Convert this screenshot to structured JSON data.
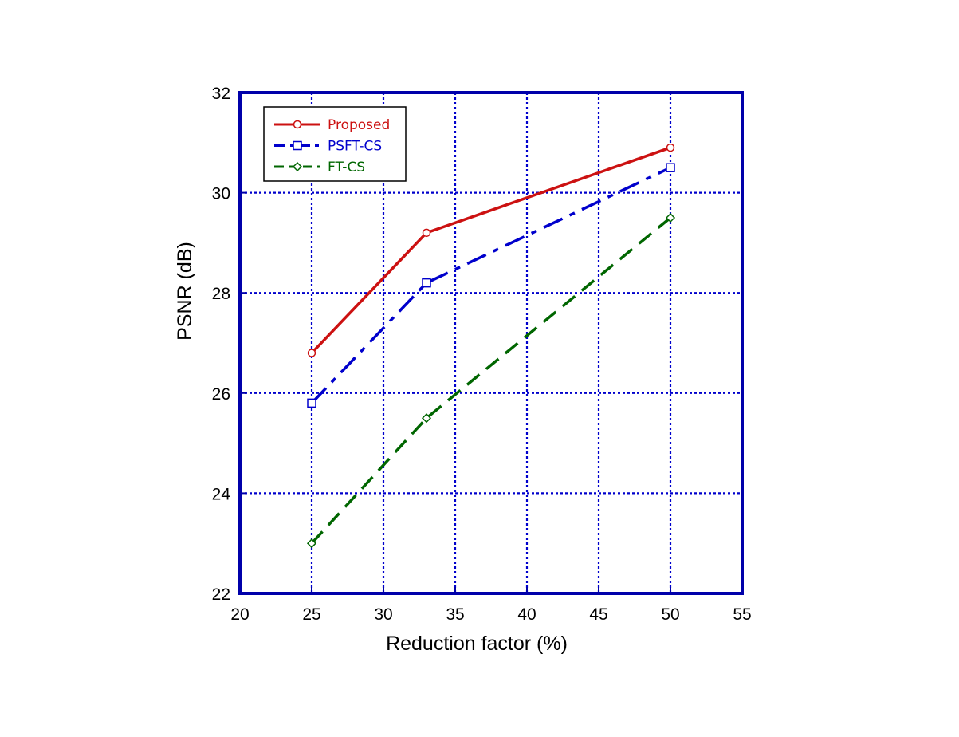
{
  "chart_data": {
    "type": "line",
    "xlabel": "Reduction factor (%)",
    "ylabel": "PSNR (dB)",
    "xlim": [
      20,
      55
    ],
    "ylim": [
      22,
      32
    ],
    "xticks": [
      20,
      25,
      30,
      35,
      40,
      45,
      50,
      55
    ],
    "yticks": [
      22,
      24,
      26,
      28,
      30,
      32
    ],
    "grid": true,
    "legend_position": "top-left",
    "x": [
      25,
      33,
      50
    ],
    "series": [
      {
        "name": "Proposed",
        "values": [
          26.8,
          29.2,
          30.9
        ],
        "color": "#cc1111",
        "marker": "circle",
        "line_style": "solid"
      },
      {
        "name": "PSFT-CS",
        "values": [
          25.8,
          28.2,
          30.5
        ],
        "color": "#0000cc",
        "marker": "square",
        "line_style": "dash-dot"
      },
      {
        "name": "FT-CS",
        "values": [
          23.0,
          25.5,
          29.5
        ],
        "color": "#006600",
        "marker": "diamond",
        "line_style": "dashed"
      }
    ],
    "colors": {
      "axis": "#0000aa",
      "grid": "#0000cc"
    }
  }
}
